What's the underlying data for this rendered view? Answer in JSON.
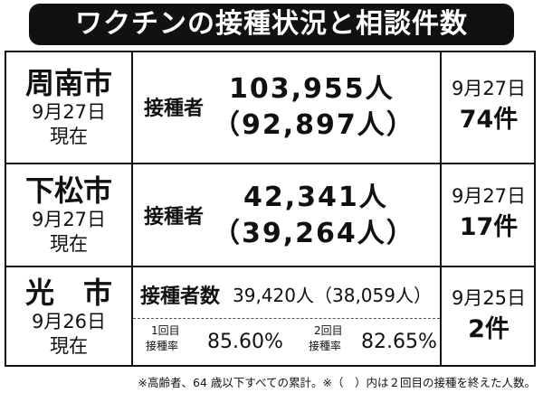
{
  "title": "ワクチンの接種状況と相談件数",
  "table": {
    "rows": [
      {
        "city": "周南市",
        "date": "9月27日",
        "as_of": "現在",
        "vaccinated_label": "接種者",
        "vaccinated": "103,955人",
        "second_dose": "（92,897人）",
        "consult_date": "9月27日",
        "consult_count": "74件"
      },
      {
        "city": "下松市",
        "date": "9月27日",
        "as_of": "現在",
        "vaccinated_label": "接種者",
        "vaccinated": "42,341人",
        "second_dose": "（39,264人）",
        "consult_date": "9月27日",
        "consult_count": "17件"
      },
      {
        "city": "光　市",
        "date": "9月26日",
        "as_of": "現在",
        "vaccinated_label": "接種者数",
        "vaccinated": "39,420人",
        "second_dose": "（38,059人）",
        "consult_date": "9月25日",
        "consult_count": "2件",
        "rates": [
          {
            "dose": "1回目",
            "label": "接種率",
            "value": "85.60%"
          },
          {
            "dose": "2回目",
            "label": "接種率",
            "value": "82.65%"
          }
        ]
      }
    ]
  },
  "footnote": "※高齢者、64 歳以下すべての累計。※（　）内は２回目の接種を終えた人数。"
}
